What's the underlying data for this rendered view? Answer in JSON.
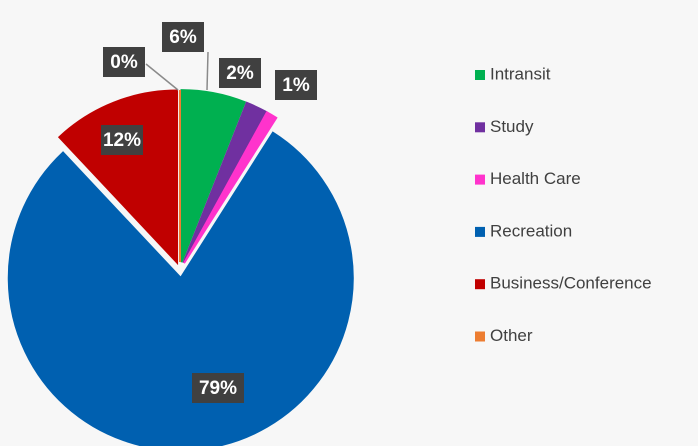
{
  "chart_data": {
    "type": "pie",
    "categories": [
      "Intransit",
      "Study",
      "Health Care",
      "Recreation",
      "Business/Conference",
      "Other"
    ],
    "values": [
      6,
      2,
      1,
      79,
      12,
      0
    ],
    "value_labels": [
      "6%",
      "2%",
      "1%",
      "79%",
      "12%",
      "0%"
    ],
    "colors": [
      "#00b050",
      "#7030a0",
      "#ff33cc",
      "#0060b0",
      "#c00000",
      "#ed7d31"
    ],
    "legend": "right"
  }
}
